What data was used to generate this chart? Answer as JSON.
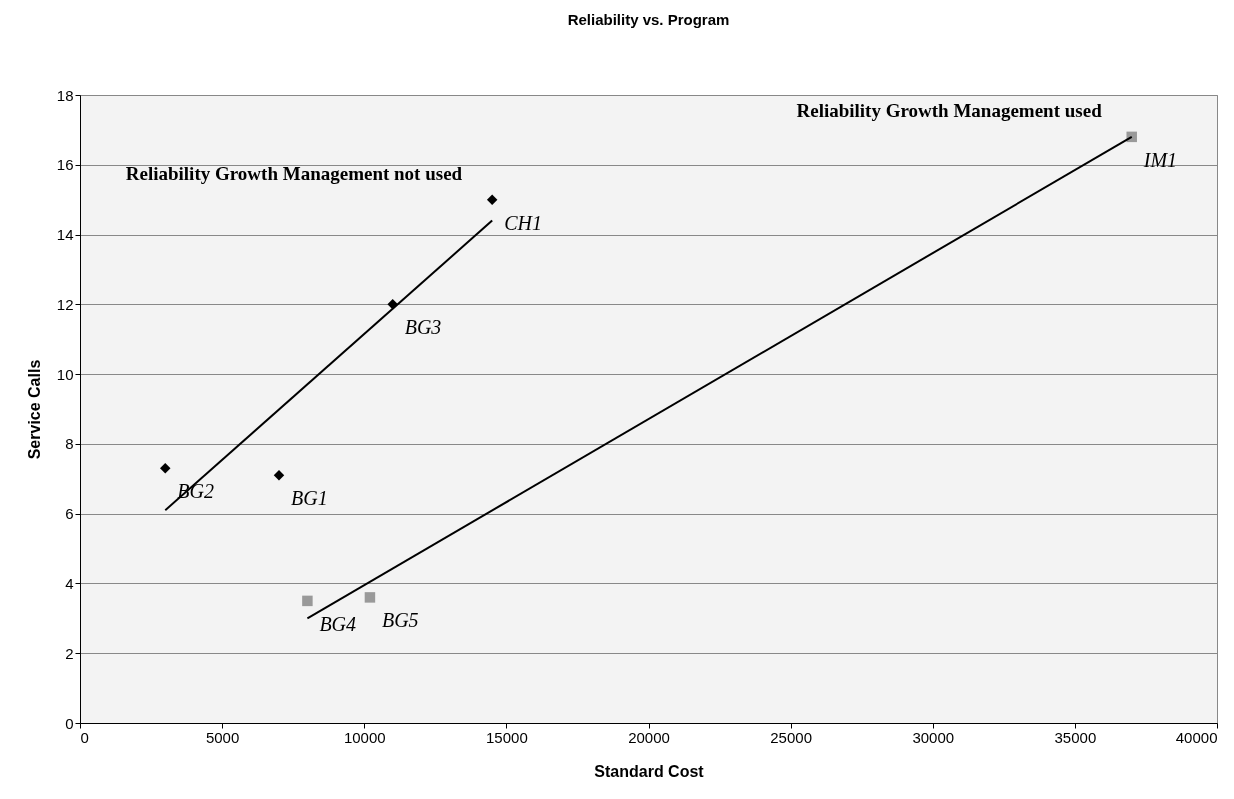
{
  "chart_data": {
    "type": "scatter",
    "title": "Reliability vs. Program",
    "xlabel": "Standard Cost",
    "ylabel": "Service Calls",
    "xlim": [
      0,
      40000
    ],
    "xticks": [
      0,
      5000,
      10000,
      15000,
      20000,
      25000,
      30000,
      35000,
      40000
    ],
    "ylim": [
      0,
      18
    ],
    "yticks": [
      0,
      2,
      4,
      6,
      8,
      10,
      12,
      14,
      16,
      18
    ],
    "grid": "y",
    "series": [
      {
        "name": "Reliability Growth Management not used",
        "color": "#000000",
        "marker": "diamond",
        "x": [
          3000,
          7000,
          11000,
          14500
        ],
        "values": [
          7.3,
          7.1,
          12,
          15
        ]
      },
      {
        "name": "Reliability Growth Management used",
        "color": "#999999",
        "marker": "square",
        "x": [
          8000,
          10200,
          37000
        ],
        "values": [
          3.5,
          3.6,
          16.8
        ]
      },
      {
        "type": "line",
        "color": "#000000",
        "marker": "none",
        "x": [
          3000,
          14500
        ],
        "values": [
          6.1,
          14.4
        ]
      },
      {
        "type": "line",
        "color": "#000000",
        "marker": "none",
        "x": [
          8000,
          37000
        ],
        "values": [
          3.0,
          16.8
        ]
      }
    ],
    "annotations": [
      {
        "text": "BG2",
        "x": 3000,
        "y": 7.3
      },
      {
        "text": "BG1",
        "x": 7000,
        "y": 7.1
      },
      {
        "text": "BG3",
        "x": 11000,
        "y": 12
      },
      {
        "text": "CH1",
        "x": 14500,
        "y": 15
      },
      {
        "text": "BG4",
        "x": 8000,
        "y": 3.5
      },
      {
        "text": "BG5",
        "x": 10200,
        "y": 3.6
      },
      {
        "text": "IM1",
        "x": 37000,
        "y": 16.8
      }
    ]
  }
}
